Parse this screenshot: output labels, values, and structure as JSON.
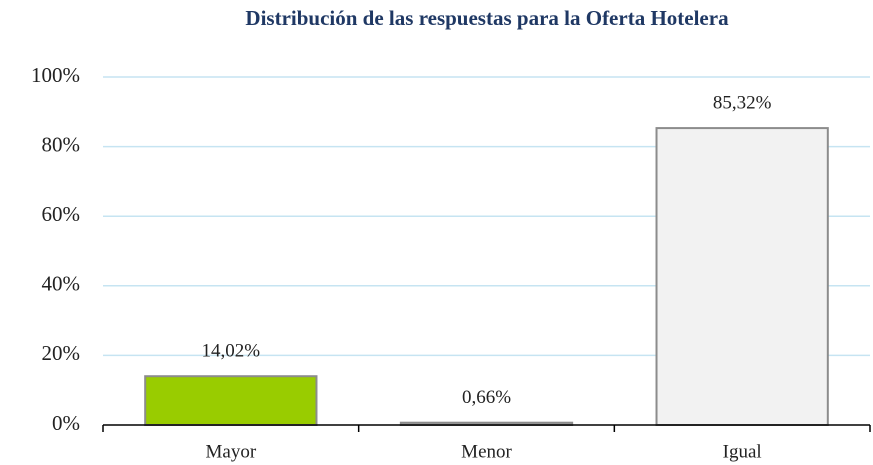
{
  "chart_data": {
    "type": "bar",
    "title": "Distribución de las respuestas para la Oferta Hotelera",
    "categories": [
      "Mayor",
      "Menor",
      "Igual"
    ],
    "values": [
      14.02,
      0.66,
      85.32
    ],
    "value_labels": [
      "14,02%",
      "0,66%",
      "85,32%"
    ],
    "colors": [
      "#99cc00",
      "#a6a6a6",
      "#f2f2f2"
    ],
    "ylim": [
      0,
      100
    ],
    "yticks": [
      {
        "value": 0,
        "label": "0%"
      },
      {
        "value": 20,
        "label": "20%"
      },
      {
        "value": 40,
        "label": "40%"
      },
      {
        "value": 60,
        "label": "60%"
      },
      {
        "value": 80,
        "label": "80%"
      },
      {
        "value": 100,
        "label": "100%"
      }
    ],
    "grid": true
  }
}
